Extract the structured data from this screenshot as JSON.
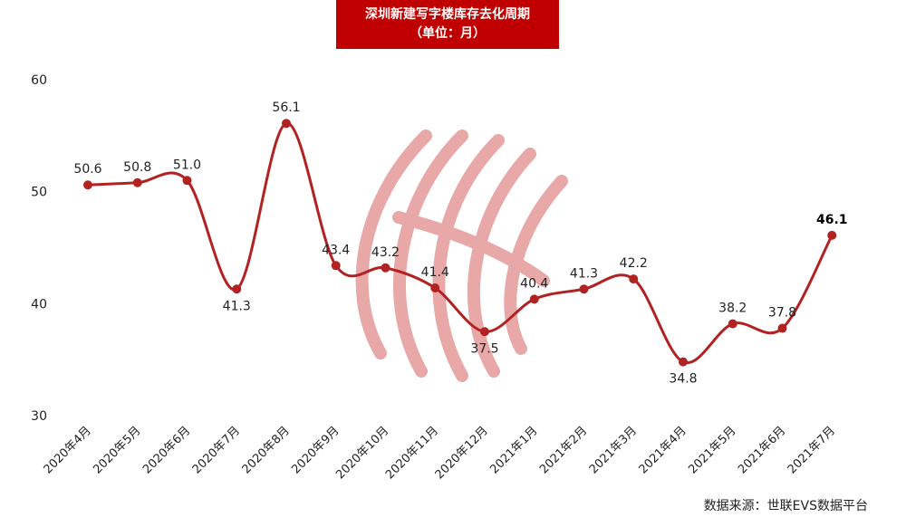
{
  "title_lines": [
    "深圳新建写字楼库存去化周期",
    "（单位：月）"
  ],
  "source": "数据来源：世联EVS数据平台",
  "colors": {
    "line": "#b22222",
    "title_bg": "#c00000",
    "watermark": "#e9a8a8"
  },
  "chart_data": {
    "type": "line",
    "title": "深圳新建写字楼库存去化周期",
    "subtitle": "（单位：月）",
    "xlabel": "",
    "ylabel": "",
    "ylim": [
      30,
      60
    ],
    "yticks": [
      30,
      40,
      50,
      60
    ],
    "grid": false,
    "categories": [
      "2020年4月",
      "2020年5月",
      "2020年6月",
      "2020年7月",
      "2020年8月",
      "2020年9月",
      "2020年10月",
      "2020年11月",
      "2020年12月",
      "2021年1月",
      "2021年2月",
      "2021年3月",
      "2021年4月",
      "2021年5月",
      "2021年6月",
      "2021年7月"
    ],
    "series": [
      {
        "values": [
          50.6,
          50.8,
          51.0,
          41.3,
          56.1,
          43.4,
          43.2,
          41.4,
          37.5,
          40.4,
          41.3,
          42.2,
          34.8,
          38.2,
          37.8,
          46.1
        ]
      }
    ],
    "data_labels": [
      "50.6",
      "50.8",
      "51.0",
      "41.3",
      "56.1",
      "43.4",
      "43.2",
      "41.4",
      "37.5",
      "40.4",
      "41.3",
      "42.2",
      "34.8",
      "38.2",
      "37.8",
      "46.1"
    ]
  }
}
